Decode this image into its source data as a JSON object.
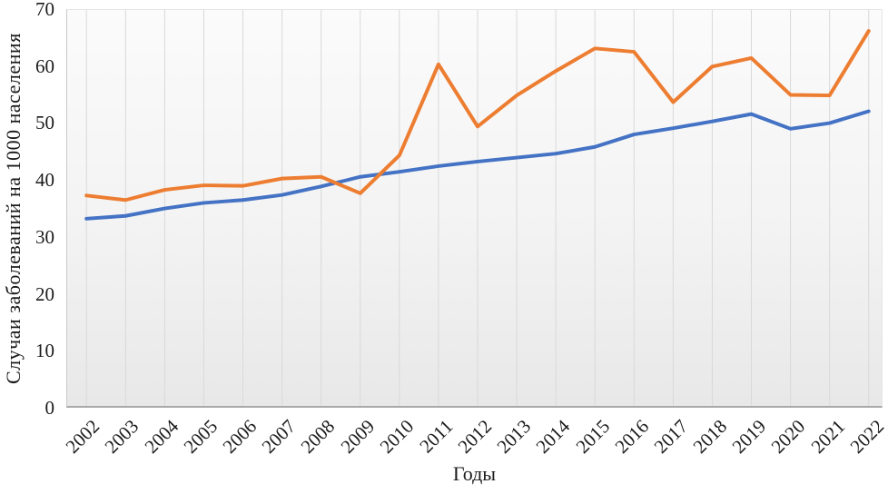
{
  "chart_data": {
    "type": "line",
    "title": "",
    "xlabel": "Годы",
    "ylabel": "Случаи заболеваний на 1000 населения",
    "ylim": [
      0,
      70
    ],
    "yticks": [
      0,
      10,
      20,
      30,
      40,
      50,
      60,
      70
    ],
    "grid": "vertical-category-gridlines",
    "legend_position": "none",
    "categories": [
      "2002",
      "2003",
      "2004",
      "2005",
      "2006",
      "2007",
      "2008",
      "2009",
      "2010",
      "2011",
      "2012",
      "2013",
      "2014",
      "2015",
      "2016",
      "2017",
      "2018",
      "2019",
      "2020",
      "2021",
      "2022"
    ],
    "series": [
      {
        "name": "blue",
        "color": "#4472C4",
        "values": [
          33.1,
          33.6,
          34.9,
          35.9,
          36.4,
          37.3,
          38.8,
          40.5,
          41.4,
          42.4,
          43.2,
          43.9,
          44.6,
          45.8,
          48.0,
          49.1,
          50.3,
          51.6,
          49.0,
          50.0,
          52.1
        ]
      },
      {
        "name": "orange",
        "color": "#ED7D31",
        "values": [
          37.2,
          36.4,
          38.2,
          39.0,
          38.9,
          40.2,
          40.5,
          37.6,
          44.3,
          60.4,
          49.4,
          54.9,
          59.2,
          63.2,
          62.6,
          53.7,
          60.0,
          61.5,
          55.0,
          54.9,
          66.3
        ]
      }
    ]
  },
  "colors": {
    "gridline": "#d9d9d9",
    "axis_line": "#a9a9a9",
    "text": "#1b1b1b",
    "plot_background_top": "#fbfbfb",
    "plot_background_bottom": "#e8e8e8"
  }
}
